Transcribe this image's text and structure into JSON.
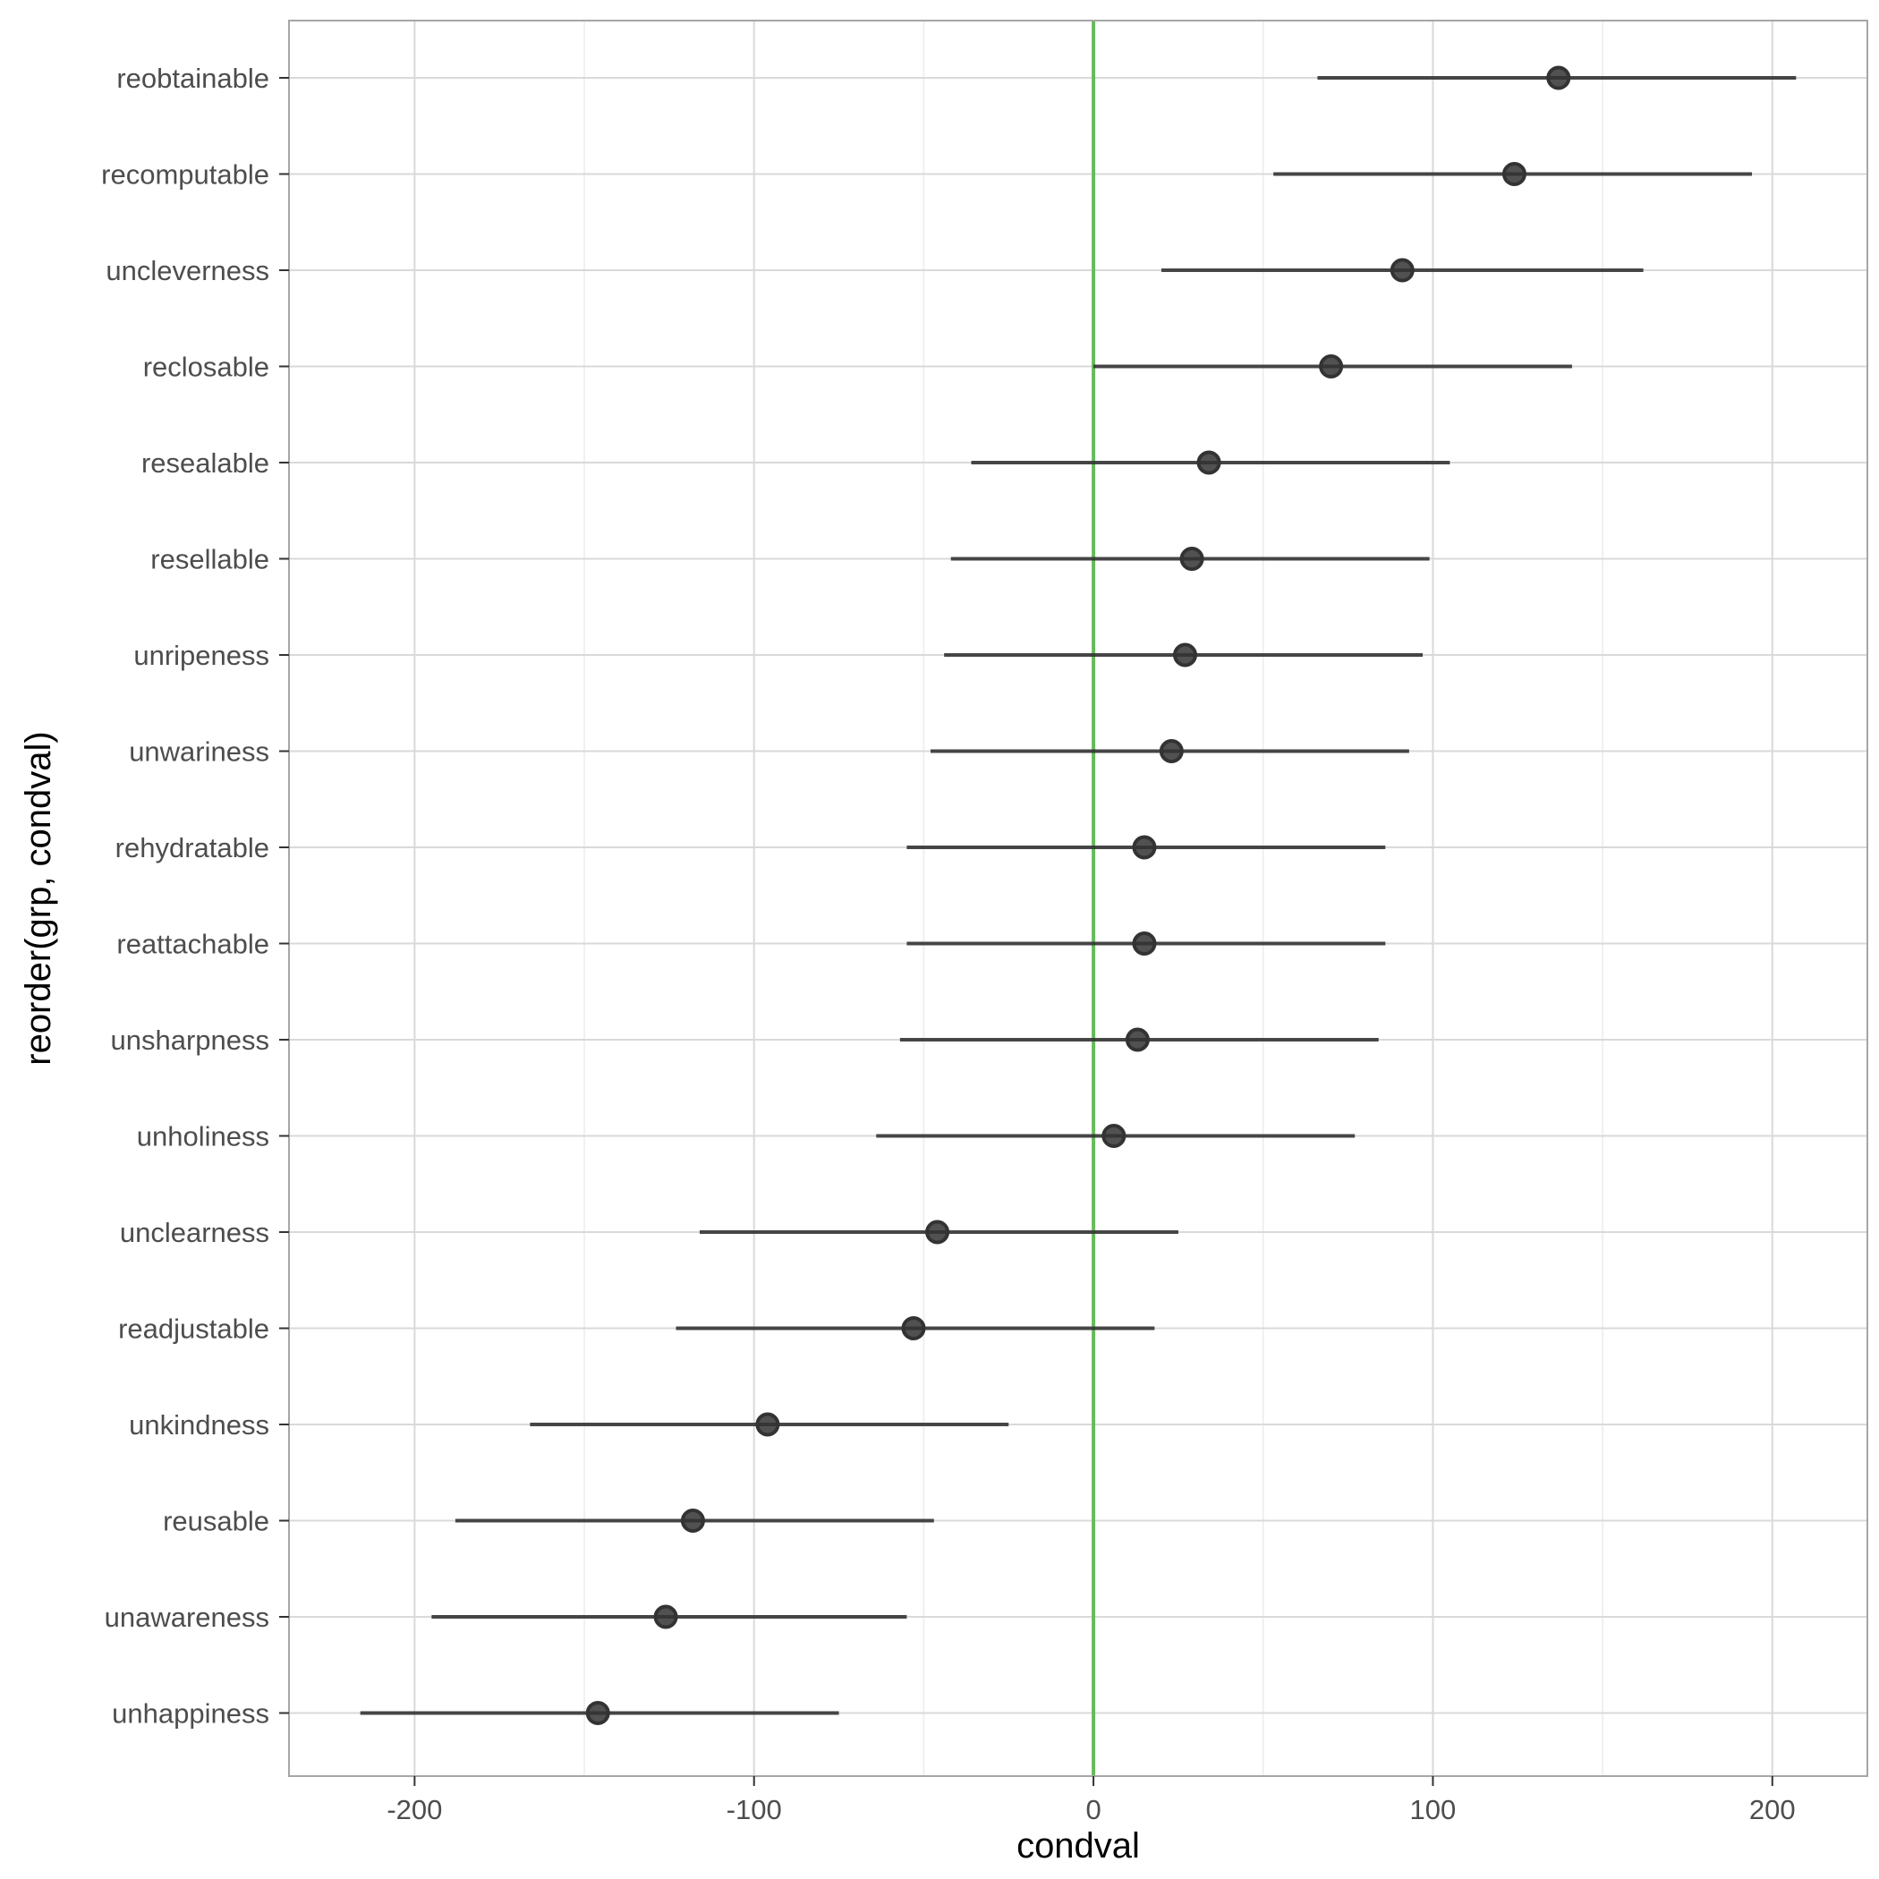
{
  "chart_data": {
    "type": "scatter",
    "subtype": "dot-and-interval",
    "xlabel": "condval",
    "ylabel": "reorder(grp, condval)",
    "xlim": [
      -237,
      228
    ],
    "x_ticks": [
      -200,
      -100,
      0,
      100,
      200
    ],
    "x_tick_labels": [
      "-200",
      "-100",
      "0",
      "100",
      "200"
    ],
    "reference_line": {
      "x": 0,
      "color": "#66bb5c"
    },
    "grid": true,
    "legend": "none",
    "colors": {
      "point": "#333333",
      "interval": "#333333",
      "grid": "#d9d9d9",
      "panel_border": "#a6a6a6"
    },
    "categories": [
      "reobtainable",
      "recomputable",
      "uncleverness",
      "reclosable",
      "resealable",
      "resellable",
      "unripeness",
      "unwariness",
      "rehydratable",
      "reattachable",
      "unsharpness",
      "unholiness",
      "unclearness",
      "readjustable",
      "unkindness",
      "reusable",
      "unawareness",
      "unhappiness"
    ],
    "values": [
      137,
      124,
      91,
      70,
      34,
      29,
      27,
      23,
      15,
      15,
      13,
      6,
      -46,
      -53,
      -96,
      -118,
      -126,
      -146
    ],
    "lower": [
      66,
      53,
      20,
      0,
      -36,
      -42,
      -44,
      -48,
      -55,
      -55,
      -57,
      -64,
      -116,
      -123,
      -166,
      -188,
      -195,
      -216
    ],
    "upper": [
      207,
      194,
      162,
      141,
      105,
      99,
      97,
      93,
      86,
      86,
      84,
      77,
      25,
      18,
      -25,
      -47,
      -55,
      -75
    ]
  }
}
